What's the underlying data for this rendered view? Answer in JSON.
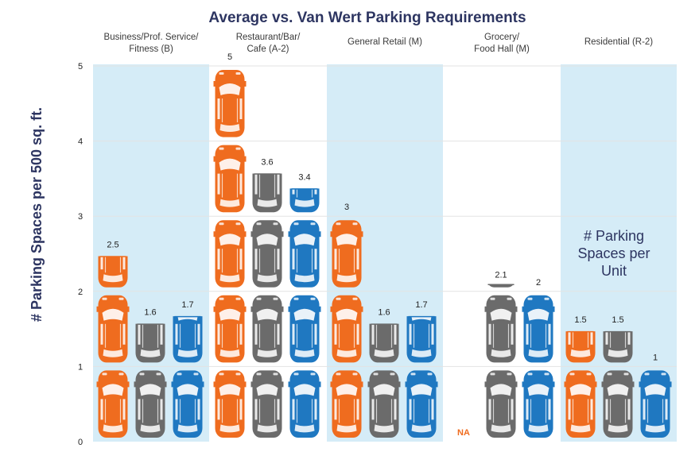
{
  "chart_data": {
    "type": "bar",
    "title": "Average vs. Van Wert Parking Requirements",
    "ylabel": "# Parking Spaces per 500 sq. ft.",
    "ylim": [
      0,
      5
    ],
    "yticks": [
      0,
      1,
      2,
      3,
      4,
      5
    ],
    "grid": true,
    "categories": [
      [
        "Business/Prof. Service/",
        "Fitness (B)"
      ],
      [
        "Restaurant/Bar/",
        "Cafe (A-2)"
      ],
      [
        "General Retail (M)"
      ],
      [
        "Grocery/",
        "Food Hall (M)"
      ],
      [
        "Residential (R-2)"
      ]
    ],
    "series": [
      {
        "color": "#ef6c1f",
        "values": [
          2.5,
          5,
          3,
          null,
          1.5
        ],
        "labels": [
          "2.5",
          "5",
          "3",
          "NA",
          "1.5"
        ]
      },
      {
        "color": "#6b6b6b",
        "values": [
          1.6,
          3.6,
          1.6,
          2.1,
          1.5
        ],
        "labels": [
          "1.6",
          "3.6",
          "1.6",
          "2.1",
          "1.5"
        ]
      },
      {
        "color": "#1f78c1",
        "values": [
          1.7,
          3.4,
          1.7,
          2,
          1
        ],
        "labels": [
          "1.7",
          "3.4",
          "1.7",
          "2",
          "1"
        ]
      }
    ],
    "shaded_categories": [
      0,
      2,
      4
    ],
    "shade_color": "#d5ecf7",
    "annotation": [
      "# Parking",
      "Spaces per",
      "Unit"
    ]
  }
}
